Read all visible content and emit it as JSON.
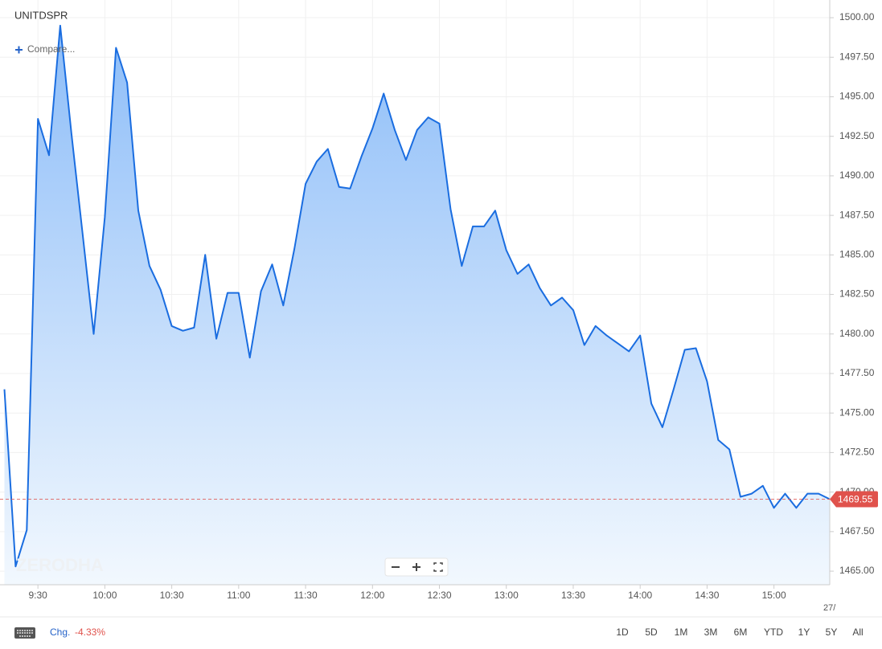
{
  "chart_data": {
    "type": "area",
    "title": "UNITDSPR",
    "compare": "Compare...",
    "watermark": "ZERODHA",
    "x": [
      "9:15",
      "9:20",
      "9:25",
      "9:30",
      "9:35",
      "9:40",
      "9:45",
      "9:50",
      "9:55",
      "10:00",
      "10:05",
      "10:10",
      "10:15",
      "10:20",
      "10:25",
      "10:30",
      "10:35",
      "10:40",
      "10:45",
      "10:50",
      "10:55",
      "11:00",
      "11:05",
      "11:10",
      "11:15",
      "11:20",
      "11:25",
      "11:30",
      "11:35",
      "11:40",
      "11:45",
      "11:50",
      "11:55",
      "12:00",
      "12:05",
      "12:10",
      "12:15",
      "12:20",
      "12:25",
      "12:30",
      "12:35",
      "12:40",
      "12:45",
      "12:50",
      "12:55",
      "13:00",
      "13:05",
      "13:10",
      "13:15",
      "13:20",
      "13:25",
      "13:30",
      "13:35",
      "13:40",
      "13:45",
      "13:50",
      "13:55",
      "14:00",
      "14:05",
      "14:10",
      "14:15",
      "14:20",
      "14:25",
      "14:30",
      "14:35",
      "14:40",
      "14:45",
      "14:50",
      "14:55",
      "15:00",
      "15:05",
      "15:10",
      "15:15",
      "15:20",
      "15:25"
    ],
    "values": [
      1476.5,
      1465.3,
      1467.6,
      1493.6,
      1491.3,
      1499.5,
      1492.7,
      1486.4,
      1480.0,
      1487.4,
      1498.1,
      1495.9,
      1487.8,
      1484.3,
      1482.8,
      1480.5,
      1480.2,
      1480.4,
      1485.0,
      1479.7,
      1482.6,
      1482.6,
      1478.5,
      1482.7,
      1484.4,
      1481.8,
      1485.4,
      1489.5,
      1490.9,
      1491.7,
      1489.3,
      1489.2,
      1491.2,
      1493.0,
      1495.2,
      1492.9,
      1491.0,
      1492.9,
      1493.7,
      1493.3,
      1487.9,
      1484.3,
      1486.8,
      1486.8,
      1487.8,
      1485.3,
      1483.8,
      1484.4,
      1482.9,
      1481.8,
      1482.3,
      1481.5,
      1479.3,
      1480.5,
      1479.9,
      1479.4,
      1478.9,
      1479.9,
      1475.6,
      1474.1,
      1476.5,
      1479.0,
      1479.1,
      1477.0,
      1473.3,
      1472.7,
      1469.7,
      1469.9,
      1470.4,
      1469.0,
      1469.9,
      1469.0,
      1469.9,
      1469.9,
      1469.55
    ],
    "color": "#1a6de0",
    "last_price": 1469.55,
    "last_price_color": "#e0524c",
    "xlim": [
      "9:13",
      "15:25"
    ],
    "xticks": [
      "9:30",
      "10:00",
      "10:30",
      "11:00",
      "11:30",
      "12:00",
      "12:30",
      "13:00",
      "13:30",
      "14:00",
      "14:30",
      "15:00"
    ],
    "x_edge_label": "27/",
    "ylim": [
      1464.14,
      1501.12
    ],
    "yticks": [
      {
        "value": 1465,
        "label": "1465.00"
      },
      {
        "value": 1467.5,
        "label": "1467.50"
      },
      {
        "value": 1470,
        "label": "1470.00"
      },
      {
        "value": 1472.5,
        "label": "1472.50"
      },
      {
        "value": 1475,
        "label": "1475.00"
      },
      {
        "value": 1477.5,
        "label": "1477.50"
      },
      {
        "value": 1480,
        "label": "1480.00"
      },
      {
        "value": 1482.5,
        "label": "1482.50"
      },
      {
        "value": 1485,
        "label": "1485.00"
      },
      {
        "value": 1487.5,
        "label": "1487.50"
      },
      {
        "value": 1490,
        "label": "1490.00"
      },
      {
        "value": 1492.5,
        "label": "1492.50"
      },
      {
        "value": 1495,
        "label": "1495.00"
      },
      {
        "value": 1497.5,
        "label": "1497.50"
      },
      {
        "value": 1500,
        "label": "1500.00"
      }
    ],
    "grid": true
  },
  "toolbar": {
    "change_label": "Chg.",
    "change_value": "-4.33%",
    "ranges": [
      "1D",
      "5D",
      "1M",
      "3M",
      "6M",
      "YTD",
      "1Y",
      "5Y",
      "All"
    ]
  }
}
